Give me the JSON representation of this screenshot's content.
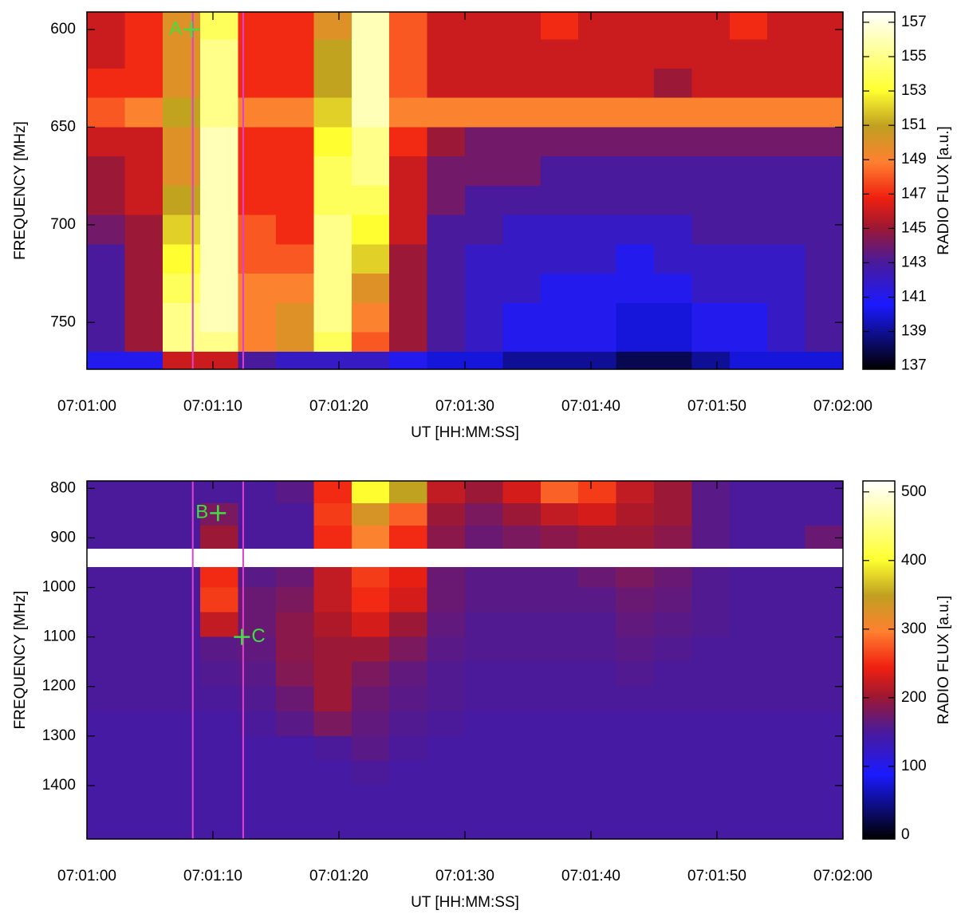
{
  "chart_data": [
    {
      "type": "heatmap",
      "xlabel": "UT [HH:MM:SS]",
      "ylabel": "FREQUENCY [MHz]",
      "colorbar_label": "RADIO FLUX [a.u.]",
      "xlim": [
        25260,
        25320
      ],
      "ylim": [
        774,
        591
      ],
      "xticks": [
        {
          "value": 25260,
          "label": "07:01:00"
        },
        {
          "value": 25270,
          "label": "07:01:10"
        },
        {
          "value": 25280,
          "label": "07:01:20"
        },
        {
          "value": 25290,
          "label": "07:01:30"
        },
        {
          "value": 25300,
          "label": "07:01:40"
        },
        {
          "value": 25310,
          "label": "07:01:50"
        },
        {
          "value": 25320,
          "label": "07:02:00"
        }
      ],
      "yticks": [
        600,
        650,
        700,
        750
      ],
      "clim": [
        136.8,
        157.6
      ],
      "cticks": [
        137,
        139,
        141,
        143,
        145,
        147,
        149,
        151,
        153,
        155,
        157
      ],
      "colorscale": [
        [
          0,
          "#000000"
        ],
        [
          0.18,
          "#1a1aff"
        ],
        [
          0.3,
          "#4a1a9a"
        ],
        [
          0.4,
          "#a01830"
        ],
        [
          0.48,
          "#f02010"
        ],
        [
          0.58,
          "#ff8030"
        ],
        [
          0.68,
          "#c0a020"
        ],
        [
          0.78,
          "#ffff30"
        ],
        [
          1,
          "#ffffff"
        ]
      ],
      "x": [
        25260,
        25263,
        25266,
        25269,
        25272,
        25275,
        25278,
        25281,
        25284,
        25287,
        25290,
        25293,
        25296,
        25299,
        25302,
        25305,
        25308,
        25311,
        25314,
        25317,
        25320
      ],
      "y": [
        591,
        605,
        620,
        635,
        650,
        665,
        680,
        695,
        710,
        725,
        740,
        755,
        765,
        774
      ],
      "values": [
        [
          146,
          147,
          150,
          154,
          147,
          147,
          150,
          156,
          148,
          146,
          146,
          146,
          147,
          146,
          146,
          146,
          146,
          147,
          146,
          146
        ],
        [
          146,
          147,
          150,
          155,
          147,
          147,
          151,
          156,
          148,
          146,
          146,
          146,
          146,
          146,
          146,
          146,
          146,
          146,
          146,
          146
        ],
        [
          147,
          147,
          150,
          155,
          147,
          147,
          151,
          156,
          148,
          146,
          146,
          146,
          146,
          146,
          146,
          145,
          146,
          146,
          146,
          146
        ],
        [
          148,
          149,
          151,
          155,
          149,
          149,
          152,
          156,
          149,
          149,
          149,
          149,
          149,
          149,
          149,
          149,
          149,
          149,
          149,
          149
        ],
        [
          146,
          146,
          150,
          156,
          147,
          147,
          153,
          155,
          147,
          145,
          144,
          144,
          144,
          144,
          144,
          144,
          144,
          144,
          144,
          144
        ],
        [
          145,
          146,
          150,
          156,
          147,
          147,
          154,
          155,
          146,
          144,
          144,
          144,
          143,
          143,
          143,
          143,
          143,
          143,
          143,
          143
        ],
        [
          145,
          146,
          151,
          156,
          147,
          147,
          154,
          154,
          146,
          144,
          143,
          143,
          143,
          143,
          143,
          143,
          143,
          143,
          143,
          143
        ],
        [
          144,
          145,
          152,
          156,
          148,
          147,
          155,
          153,
          146,
          143,
          143,
          142,
          142,
          142,
          142,
          142,
          143,
          143,
          143,
          143
        ],
        [
          143,
          145,
          153,
          156,
          148,
          148,
          155,
          152,
          145,
          143,
          142,
          142,
          142,
          142,
          141,
          142,
          142,
          142,
          142,
          143
        ],
        [
          143,
          145,
          154,
          156,
          149,
          149,
          155,
          150,
          145,
          143,
          142,
          142,
          141,
          141,
          141,
          141,
          142,
          142,
          142,
          143
        ],
        [
          143,
          145,
          155,
          156,
          149,
          150,
          155,
          149,
          145,
          143,
          142,
          141,
          141,
          141,
          140,
          140,
          141,
          141,
          142,
          143
        ],
        [
          143,
          145,
          155,
          155,
          149,
          150,
          154,
          148,
          145,
          143,
          142,
          141,
          141,
          141,
          140,
          140,
          141,
          141,
          142,
          143
        ],
        [
          141,
          141,
          146,
          146,
          143,
          142,
          142,
          142,
          141,
          140,
          140,
          139,
          139,
          139,
          138,
          138,
          139,
          140,
          140,
          140
        ]
      ],
      "vlines": [
        {
          "x": 25268.4,
          "color": "#e040d0"
        },
        {
          "x": 25272.4,
          "color": "#e040d0"
        }
      ],
      "markers": [
        {
          "x": 25268.3,
          "y": 600,
          "label": "A",
          "label_side": "left",
          "color": "#40e040"
        }
      ]
    },
    {
      "type": "heatmap",
      "xlabel": "UT [HH:MM:SS]",
      "ylabel": "FREQUENCY [MHz]",
      "colorbar_label": "RADIO FLUX [a.u.]",
      "xlim": [
        25260,
        25320
      ],
      "ylim": [
        1508,
        785
      ],
      "xticks": [
        {
          "value": 25260,
          "label": "07:01:00"
        },
        {
          "value": 25270,
          "label": "07:01:10"
        },
        {
          "value": 25280,
          "label": "07:01:20"
        },
        {
          "value": 25290,
          "label": "07:01:30"
        },
        {
          "value": 25300,
          "label": "07:01:40"
        },
        {
          "value": 25310,
          "label": "07:01:50"
        },
        {
          "value": 25320,
          "label": "07:02:00"
        }
      ],
      "yticks": [
        800,
        900,
        1000,
        1100,
        1200,
        1300,
        1400
      ],
      "clim": [
        -6,
        516
      ],
      "cticks": [
        0,
        100,
        200,
        300,
        400,
        500
      ],
      "colorscale": [
        [
          0,
          "#000000"
        ],
        [
          0.18,
          "#1a1aff"
        ],
        [
          0.3,
          "#4a1a9a"
        ],
        [
          0.4,
          "#a01830"
        ],
        [
          0.48,
          "#f02010"
        ],
        [
          0.58,
          "#ff8030"
        ],
        [
          0.68,
          "#c0a020"
        ],
        [
          0.78,
          "#ffff30"
        ],
        [
          1,
          "#ffffff"
        ]
      ],
      "x": [
        25260,
        25263,
        25266,
        25269,
        25272,
        25275,
        25278,
        25281,
        25284,
        25287,
        25290,
        25293,
        25296,
        25299,
        25302,
        25305,
        25308,
        25311,
        25314,
        25317,
        25320
      ],
      "y": [
        785,
        830,
        875,
        921,
        959,
        1000,
        1050,
        1100,
        1150,
        1200,
        1250,
        1300,
        1350,
        1400,
        1450,
        1508
      ],
      "values": [
        [
          150,
          150,
          150,
          150,
          150,
          160,
          250,
          400,
          350,
          220,
          200,
          230,
          280,
          260,
          220,
          200,
          160,
          150,
          150,
          150
        ],
        [
          150,
          150,
          150,
          180,
          150,
          150,
          260,
          330,
          280,
          200,
          180,
          200,
          220,
          230,
          210,
          200,
          160,
          150,
          150,
          150
        ],
        [
          150,
          150,
          150,
          200,
          150,
          150,
          250,
          300,
          250,
          190,
          170,
          180,
          190,
          200,
          200,
          190,
          160,
          150,
          150,
          170
        ],
        [
          null,
          null,
          null,
          null,
          null,
          null,
          null,
          null,
          null,
          null,
          null,
          null,
          null,
          null,
          null,
          null,
          null,
          null,
          null,
          null
        ],
        [
          150,
          150,
          150,
          250,
          160,
          170,
          220,
          260,
          240,
          170,
          160,
          160,
          160,
          170,
          180,
          170,
          155,
          150,
          150,
          150
        ],
        [
          150,
          150,
          150,
          260,
          170,
          180,
          220,
          250,
          230,
          170,
          160,
          160,
          160,
          160,
          170,
          165,
          155,
          150,
          150,
          150
        ],
        [
          150,
          150,
          150,
          220,
          170,
          190,
          210,
          230,
          200,
          165,
          155,
          155,
          155,
          155,
          165,
          160,
          155,
          150,
          150,
          150
        ],
        [
          150,
          150,
          150,
          160,
          165,
          190,
          200,
          200,
          180,
          160,
          155,
          155,
          155,
          155,
          160,
          155,
          150,
          150,
          150,
          150
        ],
        [
          150,
          150,
          150,
          155,
          160,
          185,
          200,
          180,
          165,
          155,
          150,
          150,
          150,
          150,
          155,
          150,
          150,
          150,
          150,
          150
        ],
        [
          150,
          150,
          150,
          150,
          155,
          170,
          200,
          170,
          160,
          155,
          150,
          150,
          150,
          150,
          150,
          150,
          150,
          150,
          150,
          150
        ],
        [
          145,
          145,
          145,
          145,
          150,
          160,
          180,
          165,
          155,
          150,
          145,
          145,
          145,
          145,
          145,
          145,
          145,
          145,
          145,
          145
        ],
        [
          145,
          145,
          145,
          145,
          145,
          145,
          150,
          160,
          150,
          145,
          145,
          145,
          145,
          145,
          145,
          145,
          145,
          145,
          145,
          145
        ],
        [
          145,
          145,
          145,
          145,
          145,
          145,
          145,
          150,
          145,
          145,
          145,
          145,
          145,
          145,
          145,
          145,
          145,
          145,
          145,
          145
        ],
        [
          145,
          145,
          145,
          145,
          145,
          145,
          145,
          145,
          145,
          145,
          145,
          145,
          145,
          145,
          145,
          145,
          145,
          145,
          145,
          145
        ],
        [
          145,
          145,
          145,
          145,
          145,
          145,
          145,
          145,
          145,
          145,
          145,
          145,
          145,
          145,
          145,
          145,
          145,
          145,
          145,
          145
        ]
      ],
      "vlines": [
        {
          "x": 25268.4,
          "color": "#e040d0"
        },
        {
          "x": 25272.4,
          "color": "#e040d0"
        }
      ],
      "markers": [
        {
          "x": 25270.4,
          "y": 850,
          "label": "B",
          "label_side": "left",
          "color": "#40e040"
        },
        {
          "x": 25272.3,
          "y": 1100,
          "label": "C",
          "label_side": "right",
          "color": "#40e040"
        }
      ]
    }
  ]
}
